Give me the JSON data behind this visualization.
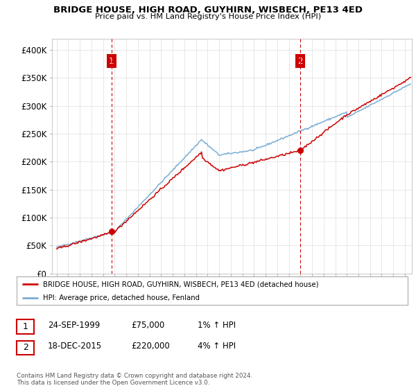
{
  "title": "BRIDGE HOUSE, HIGH ROAD, GUYHIRN, WISBECH, PE13 4ED",
  "subtitle": "Price paid vs. HM Land Registry's House Price Index (HPI)",
  "ylim": [
    0,
    420000
  ],
  "yticks": [
    0,
    50000,
    100000,
    150000,
    200000,
    250000,
    300000,
    350000,
    400000
  ],
  "ytick_labels": [
    "£0",
    "£50K",
    "£100K",
    "£150K",
    "£200K",
    "£250K",
    "£300K",
    "£350K",
    "£400K"
  ],
  "xlim_start": 1994.6,
  "xlim_end": 2025.6,
  "sale1_x": 1999.73,
  "sale1_y": 75000,
  "sale2_x": 2015.97,
  "sale2_y": 220000,
  "sale1_label": "1",
  "sale2_label": "2",
  "vline_color": "#cc0000",
  "hpi_line_color": "#7aadd4",
  "price_line_color": "#cc0000",
  "legend_entry1": "BRIDGE HOUSE, HIGH ROAD, GUYHIRN, WISBECH, PE13 4ED (detached house)",
  "legend_entry2": "HPI: Average price, detached house, Fenland",
  "table_row1": [
    "1",
    "24-SEP-1999",
    "£75,000",
    "1% ↑ HPI"
  ],
  "table_row2": [
    "2",
    "18-DEC-2015",
    "£220,000",
    "4% ↑ HPI"
  ],
  "footnote": "Contains HM Land Registry data © Crown copyright and database right 2024.\nThis data is licensed under the Open Government Licence v3.0.",
  "background_color": "#ffffff",
  "grid_color": "#dddddd"
}
